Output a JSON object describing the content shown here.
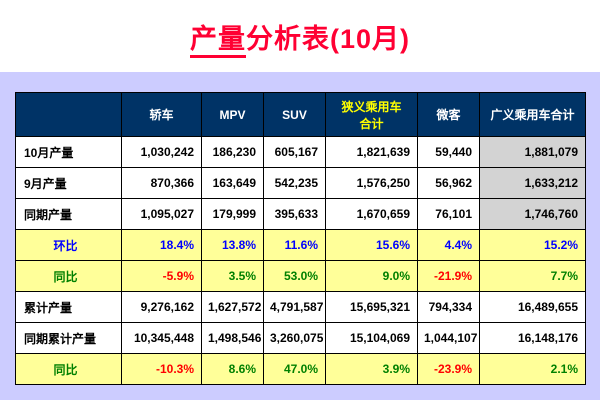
{
  "page": {
    "background": "#CCCCFF"
  },
  "title": {
    "underlined": "产量",
    "rest": "分析表(10月)",
    "color": "#FF0033"
  },
  "chart_data": {
    "type": "table",
    "title": "产量分析表(10月)",
    "columns": [
      {
        "label": "",
        "highlight": false
      },
      {
        "label": "轿车",
        "highlight": false
      },
      {
        "label": "MPV",
        "highlight": false
      },
      {
        "label": "SUV",
        "highlight": false
      },
      {
        "label": "狭义乘用车\n合计",
        "highlight": true
      },
      {
        "label": "微客",
        "highlight": false
      },
      {
        "label": "广义乘用车合计",
        "highlight": false
      }
    ],
    "rows": [
      {
        "label": "10月产量",
        "type": "count",
        "last_gray": true,
        "values": [
          "1,030,242",
          "186,230",
          "605,167",
          "1,821,639",
          "59,440",
          "1,881,079"
        ]
      },
      {
        "label": "9月产量",
        "type": "count",
        "last_gray": true,
        "values": [
          "870,366",
          "163,649",
          "542,235",
          "1,576,250",
          "56,962",
          "1,633,212"
        ]
      },
      {
        "label": "同期产量",
        "type": "count",
        "last_gray": true,
        "values": [
          "1,095,027",
          "179,999",
          "395,633",
          "1,670,659",
          "76,101",
          "1,746,760"
        ]
      },
      {
        "label": "环比",
        "type": "mom",
        "last_gray": false,
        "values": [
          "18.4%",
          "13.8%",
          "11.6%",
          "15.6%",
          "4.4%",
          "15.2%"
        ]
      },
      {
        "label": "同比",
        "type": "yoy",
        "last_gray": false,
        "values": [
          "-5.9%",
          "3.5%",
          "53.0%",
          "9.0%",
          "-21.9%",
          "7.7%"
        ]
      },
      {
        "label": "累计产量",
        "type": "count",
        "last_gray": false,
        "values": [
          "9,276,162",
          "1,627,572",
          "4,791,587",
          "15,695,321",
          "794,334",
          "16,489,655"
        ]
      },
      {
        "label": "同期累计产量",
        "type": "count",
        "last_gray": false,
        "values": [
          "10,345,448",
          "1,498,546",
          "3,260,075",
          "15,104,069",
          "1,044,107",
          "16,148,176"
        ]
      },
      {
        "label": "同比",
        "type": "yoy",
        "last_gray": false,
        "values": [
          "-10.3%",
          "8.6%",
          "47.0%",
          "3.9%",
          "-23.9%",
          "2.1%"
        ]
      }
    ],
    "colors": {
      "header_bg": "#003366",
      "header_text": "#FFFFFF",
      "header_highlight": "#FFFF00",
      "ratio_row_bg": "#FFFF99",
      "mom_text": "#0000FF",
      "positive": "#008000",
      "negative": "#FF0000",
      "gray_cell": "#D3D3D3"
    }
  }
}
